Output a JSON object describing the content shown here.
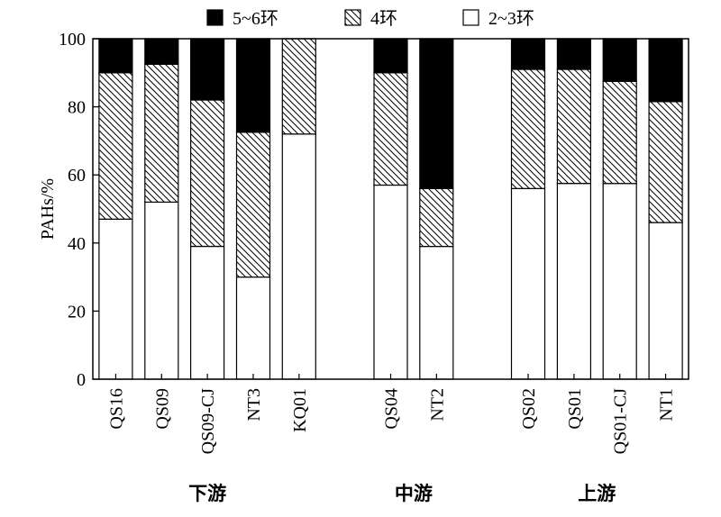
{
  "chart_data": {
    "type": "bar",
    "stacked": true,
    "ylabel": "PAHs/%",
    "ylim": [
      0,
      100
    ],
    "yticks": [
      0,
      20,
      40,
      60,
      80,
      100
    ],
    "legend": {
      "placement": "top-center",
      "entries": [
        "5~6环",
        "4环",
        "2~3环"
      ]
    },
    "categories": [
      "QS16",
      "QS09",
      "QS09-CJ",
      "NT3",
      "KQ01",
      "QS04",
      "NT2",
      "QS02",
      "QS01",
      "QS01-CJ",
      "NT1"
    ],
    "groups": [
      {
        "label": "下游",
        "categories": [
          "QS16",
          "QS09",
          "QS09-CJ",
          "NT3",
          "KQ01"
        ]
      },
      {
        "label": "中游",
        "categories": [
          "QS04",
          "NT2"
        ]
      },
      {
        "label": "上游",
        "categories": [
          "QS02",
          "QS01",
          "QS01-CJ",
          "NT1"
        ]
      }
    ],
    "series": [
      {
        "name": "2~3环",
        "fill": "#ffffff",
        "pattern": "none",
        "values": [
          47,
          52,
          39,
          30,
          72,
          57,
          39,
          56,
          57.5,
          57.5,
          46
        ]
      },
      {
        "name": "4环",
        "fill": "#ffffff",
        "pattern": "diagonal-hatch",
        "values": [
          43,
          40.5,
          43,
          42.5,
          28,
          33,
          17,
          35,
          33.5,
          30,
          35.5
        ]
      },
      {
        "name": "5~6环",
        "fill": "#000000",
        "pattern": "solid",
        "values": [
          10,
          7.5,
          18,
          27.5,
          0,
          10,
          44,
          9,
          9,
          12.5,
          18.5
        ]
      }
    ],
    "grid": false
  }
}
